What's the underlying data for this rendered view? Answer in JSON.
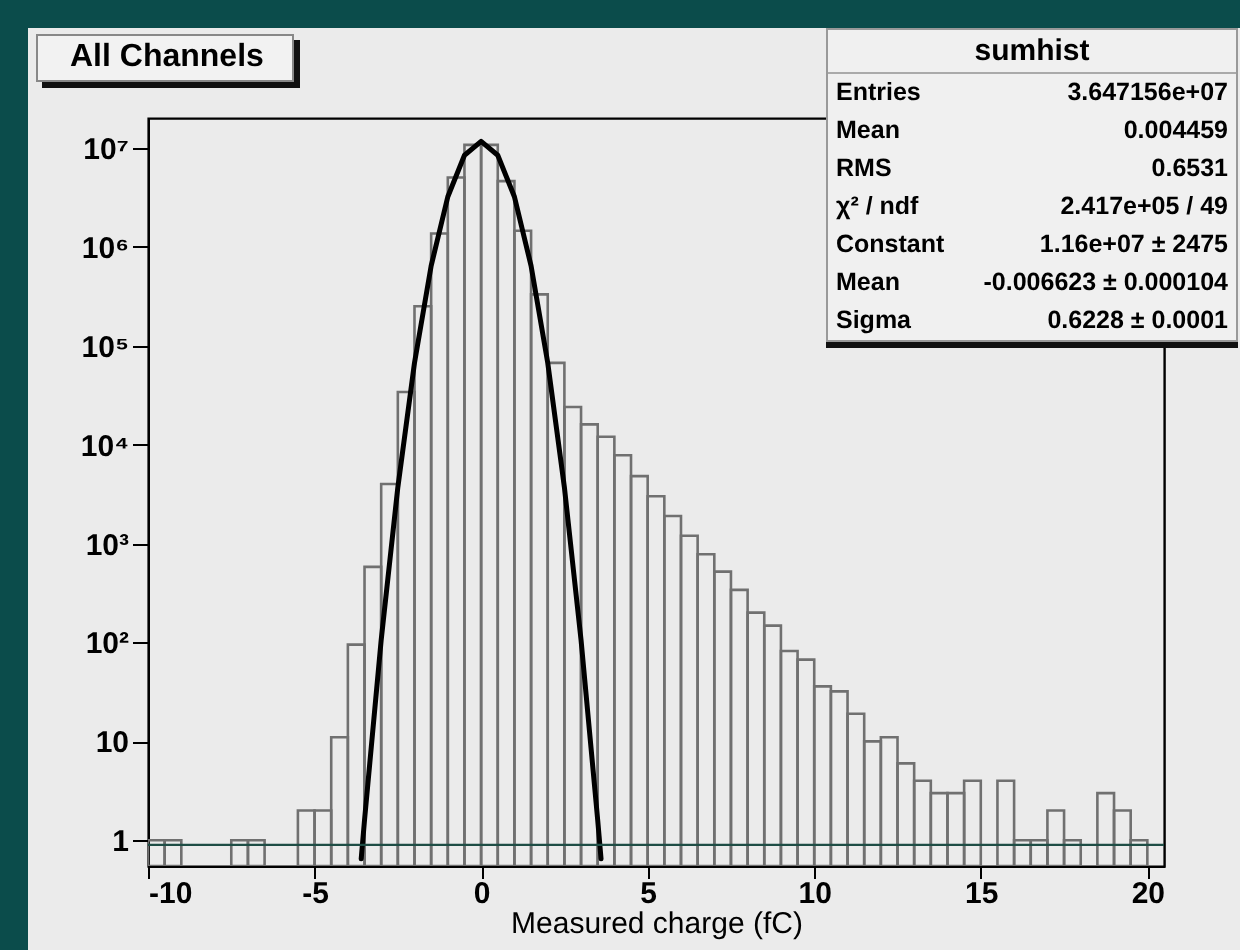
{
  "chart_data": {
    "type": "histogram",
    "title": "All Channels",
    "xlabel": "Measured charge (fC)",
    "bins": [
      -10,
      -9.5,
      -9,
      -8.5,
      -8,
      -7.5,
      -7,
      -6.5,
      -6,
      -5.5,
      -5,
      -4.5,
      -4,
      -3.5,
      -3,
      -2.5,
      -2,
      -1.5,
      -1,
      -0.5,
      0,
      0.5,
      1,
      1.5,
      2,
      2.5,
      3,
      3.5,
      4,
      4.5,
      5,
      5.5,
      6,
      6.5,
      7,
      7.5,
      8,
      8.5,
      9,
      9.5,
      10,
      10.5,
      11,
      11.5,
      12,
      12.5,
      13,
      13.5,
      14,
      14.5,
      15,
      15.5,
      16,
      16.5,
      17,
      17.5,
      18,
      18.5,
      19,
      19.5,
      20,
      20.5
    ],
    "series": [
      {
        "color": "#707070",
        "values": [
          1,
          1,
          null,
          null,
          null,
          1,
          1,
          null,
          null,
          2,
          2,
          11,
          95,
          580,
          4000,
          34000,
          250000,
          1360000,
          5000000,
          10700000,
          10700000,
          4600000,
          1450000,
          330000,
          67000,
          24000,
          16000,
          12000,
          7800,
          4800,
          3000,
          1900,
          1200,
          780,
          520,
          340,
          200,
          148,
          82,
          67,
          36,
          32,
          19,
          10,
          11,
          6,
          4,
          3,
          3,
          4,
          null,
          4,
          1,
          1,
          2,
          1,
          null,
          3,
          2,
          1,
          null
        ]
      },
      {
        "type": "line",
        "color": "#000000",
        "x": [
          -3.6,
          -3.5,
          -3,
          -2.5,
          -2,
          -1.5,
          -1,
          -0.5,
          0,
          0.5,
          1,
          1.5,
          2,
          2.5,
          3,
          3.5,
          3.6
        ],
        "values": [
          0.65,
          1.6,
          106,
          3700,
          67000,
          640000,
          3200000,
          8400000,
          11600000,
          8400000,
          3200000,
          640000,
          67000,
          3700,
          106,
          1.6,
          0.65
        ]
      }
    ],
    "log": "y",
    "xlim": [
      -10,
      20.5
    ],
    "xticks": [
      -10,
      -5,
      0,
      5,
      10,
      15,
      20
    ],
    "ylim": [
      0.55,
      20000000
    ],
    "yticks": [
      {
        "value": 1,
        "label": "1"
      },
      {
        "value": 10,
        "label": "10"
      },
      {
        "value": 100,
        "label": "10²"
      },
      {
        "value": 1000,
        "label": "10³"
      },
      {
        "value": 10000,
        "label": "10⁴"
      },
      {
        "value": 100000,
        "label": "10⁵"
      },
      {
        "value": 1000000,
        "label": "10⁶"
      },
      {
        "value": 10000000,
        "label": "10⁷"
      }
    ],
    "ref_lines": [
      {
        "axis": "y",
        "value": 0.9,
        "color": "#1e4d45"
      }
    ],
    "annotations": [
      "sumhist",
      "Entries",
      "3.647156e+07",
      "Mean",
      "0.004459",
      "RMS",
      "0.6531",
      "χ² / ndf",
      "2.417e+05 / 49",
      "Constant",
      "1.16e+07 ± 2475",
      "Mean",
      "-0.006623 ± 0.000104",
      "Sigma",
      "0.6228 ± 0.0001"
    ]
  }
}
